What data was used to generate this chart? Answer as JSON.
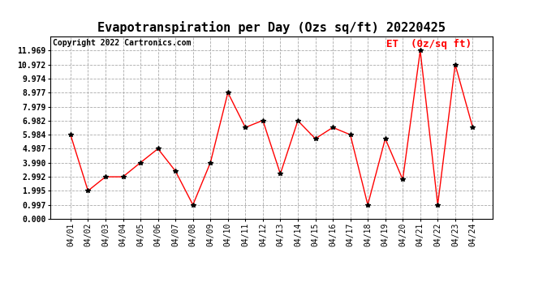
{
  "title": "Evapotranspiration per Day (Ozs sq/ft) 20220425",
  "copyright": "Copyright 2022 Cartronics.com",
  "legend_label": "ET  (0z/sq ft)",
  "dates": [
    "04/01",
    "04/02",
    "04/03",
    "04/04",
    "04/05",
    "04/06",
    "04/07",
    "04/08",
    "04/09",
    "04/10",
    "04/11",
    "04/12",
    "04/13",
    "04/14",
    "04/15",
    "04/16",
    "04/17",
    "04/18",
    "04/19",
    "04/20",
    "04/21",
    "04/22",
    "04/23",
    "04/24"
  ],
  "values": [
    5.984,
    1.995,
    2.992,
    2.992,
    4.0,
    4.987,
    3.4,
    0.997,
    4.0,
    8.977,
    6.5,
    7.0,
    3.2,
    6.982,
    5.7,
    6.5,
    5.984,
    0.997,
    5.7,
    2.8,
    11.969,
    0.997,
    10.972,
    6.5
  ],
  "line_color": "#ff0000",
  "marker": "*",
  "marker_color": "#000000",
  "ylim": [
    0.0,
    12.966
  ],
  "yticks": [
    0.0,
    0.997,
    1.995,
    2.992,
    3.99,
    4.987,
    5.984,
    6.982,
    7.979,
    8.977,
    9.974,
    10.972,
    11.969
  ],
  "background_color": "#ffffff",
  "grid_color": "#aaaaaa",
  "title_fontsize": 11,
  "copyright_fontsize": 7,
  "legend_fontsize": 9,
  "tick_fontsize": 7
}
